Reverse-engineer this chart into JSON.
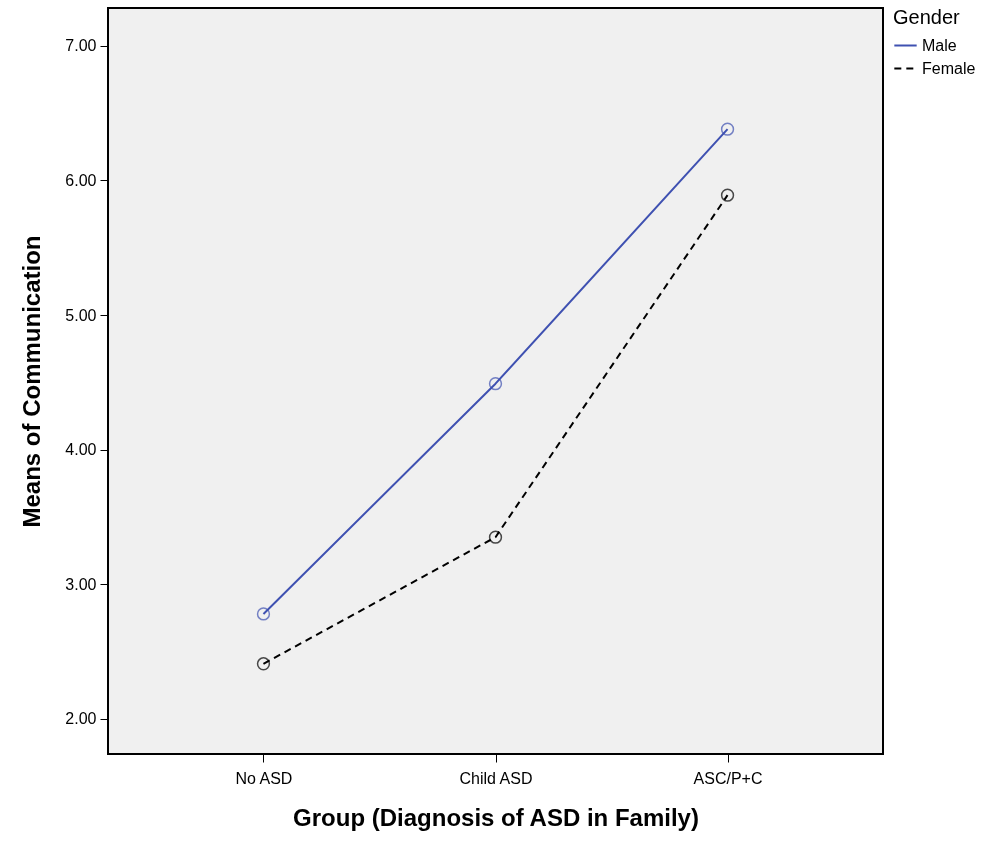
{
  "chart_data": {
    "type": "line",
    "xlabel": "Group (Diagnosis of ASD in Family)",
    "ylabel": "Means of Communication",
    "legend_title": "Gender",
    "categories": [
      "No ASD",
      "Child ASD",
      "ASC/P+C"
    ],
    "series": [
      {
        "name": "Male",
        "color": "#3f51b1",
        "line_style": "solid",
        "values": [
          2.78,
          4.49,
          6.38
        ]
      },
      {
        "name": "Female",
        "color": "#000000",
        "line_style": "dashed",
        "values": [
          2.41,
          3.35,
          5.89
        ]
      }
    ],
    "ylim": [
      1.74,
      7.28
    ],
    "yticks": [
      {
        "value": 2,
        "label": "2.00"
      },
      {
        "value": 3,
        "label": "3.00"
      },
      {
        "value": 4,
        "label": "4.00"
      },
      {
        "value": 5,
        "label": "5.00"
      },
      {
        "value": 6,
        "label": "6.00"
      },
      {
        "value": 7,
        "label": "7.00"
      }
    ],
    "marker": "circle",
    "grid": false,
    "legend": "top right"
  }
}
